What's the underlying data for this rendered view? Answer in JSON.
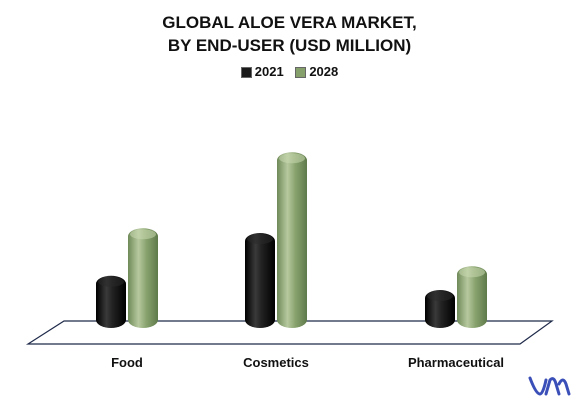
{
  "chart_data": {
    "type": "bar",
    "title_line1": "GLOBAL ALOE VERA MARKET,",
    "title_line2": "BY END-USER (USD MILLION)",
    "categories": [
      "Food",
      "Cosmetics",
      "Pharmaceutical"
    ],
    "series": [
      {
        "name": "2021",
        "values": [
          55,
          100,
          40
        ],
        "color": "#1a1a1a"
      },
      {
        "name": "2028",
        "values": [
          105,
          185,
          65
        ],
        "color": "#86a06c"
      }
    ],
    "ylim": [
      0,
      200
    ],
    "legend_position": "top",
    "grid": false,
    "shape": "3d-cylinder"
  },
  "logo": {
    "name": "brand-logo-icon",
    "color": "#3b4fb8"
  }
}
